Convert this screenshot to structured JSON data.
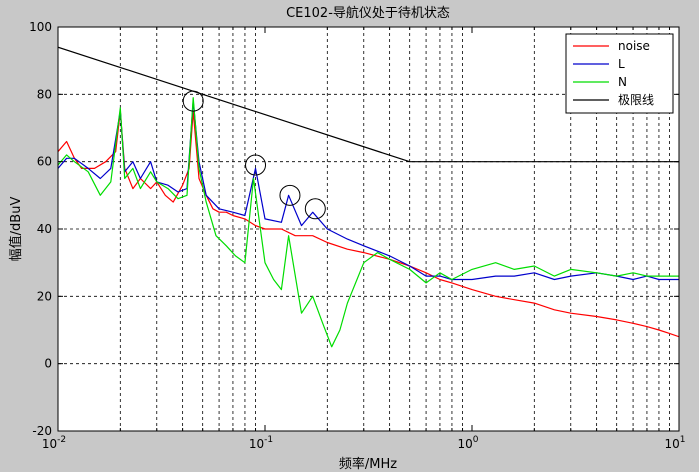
{
  "chart_data": {
    "type": "line",
    "title": "CE102-导航仪处于待机状态",
    "xlabel": "频率/MHz",
    "ylabel": "幅值/dBuV",
    "x_scale": "log",
    "xlim": [
      0.01,
      10
    ],
    "ylim": [
      -20,
      100
    ],
    "grid": true,
    "legend_position": "top-right",
    "x_tick_labels": [
      {
        "base": "10",
        "exp": "-2"
      },
      {
        "base": "10",
        "exp": "-1"
      },
      {
        "base": "10",
        "exp": "0"
      },
      {
        "base": "10",
        "exp": "1"
      }
    ],
    "y_ticks": [
      -20,
      0,
      20,
      40,
      60,
      80,
      100
    ],
    "series": [
      {
        "name": "noise",
        "color": "#ff0000",
        "x": [
          0.01,
          0.011,
          0.012,
          0.013,
          0.015,
          0.017,
          0.019,
          0.02,
          0.021,
          0.023,
          0.025,
          0.028,
          0.03,
          0.033,
          0.036,
          0.04,
          0.043,
          0.045,
          0.048,
          0.052,
          0.056,
          0.06,
          0.065,
          0.07,
          0.08,
          0.09,
          0.1,
          0.12,
          0.14,
          0.17,
          0.2,
          0.25,
          0.3,
          0.4,
          0.5,
          0.6,
          0.7,
          0.8,
          1.0,
          1.3,
          1.6,
          2.0,
          2.5,
          3.0,
          4.0,
          5.0,
          6.0,
          7.0,
          8.0,
          9.0,
          10.0
        ],
        "y": [
          63,
          66,
          61,
          58,
          58,
          60,
          63,
          75,
          58,
          52,
          55,
          52,
          54,
          50,
          48,
          53,
          58,
          75,
          55,
          50,
          46,
          45,
          45,
          44,
          43,
          41,
          40,
          40,
          38,
          38,
          36,
          34,
          33,
          31,
          29,
          27,
          25,
          24,
          22,
          20,
          19,
          18,
          16,
          15,
          14,
          13,
          12,
          11,
          10,
          9,
          8
        ]
      },
      {
        "name": "L",
        "color": "#0000cc",
        "x": [
          0.01,
          0.011,
          0.012,
          0.014,
          0.016,
          0.018,
          0.02,
          0.021,
          0.023,
          0.025,
          0.028,
          0.03,
          0.034,
          0.038,
          0.042,
          0.045,
          0.048,
          0.052,
          0.06,
          0.07,
          0.08,
          0.09,
          0.1,
          0.12,
          0.13,
          0.15,
          0.17,
          0.2,
          0.25,
          0.3,
          0.4,
          0.5,
          0.6,
          0.7,
          0.8,
          1.0,
          1.3,
          1.6,
          2.0,
          2.5,
          3.0,
          4.0,
          5.0,
          6.0,
          7.0,
          8.0,
          9.0,
          10.0
        ],
        "y": [
          58,
          61,
          61,
          58,
          55,
          58,
          75,
          57,
          60,
          55,
          60,
          54,
          53,
          51,
          52,
          78,
          60,
          50,
          46,
          45,
          44,
          58,
          43,
          42,
          50,
          41,
          45,
          40,
          37,
          35,
          32,
          29,
          26,
          26,
          25,
          25,
          26,
          26,
          27,
          25,
          26,
          27,
          26,
          25,
          26,
          25,
          25,
          25
        ]
      },
      {
        "name": "N",
        "color": "#00dd00",
        "x": [
          0.01,
          0.011,
          0.012,
          0.014,
          0.016,
          0.018,
          0.02,
          0.021,
          0.023,
          0.025,
          0.028,
          0.03,
          0.034,
          0.038,
          0.042,
          0.045,
          0.048,
          0.052,
          0.058,
          0.065,
          0.072,
          0.08,
          0.088,
          0.1,
          0.11,
          0.12,
          0.13,
          0.15,
          0.17,
          0.19,
          0.21,
          0.23,
          0.25,
          0.3,
          0.35,
          0.4,
          0.5,
          0.6,
          0.7,
          0.8,
          1.0,
          1.3,
          1.6,
          2.0,
          2.5,
          3.0,
          4.0,
          5.0,
          6.0,
          7.0,
          8.0,
          9.0,
          10.0
        ],
        "y": [
          59,
          62,
          60,
          57,
          50,
          54,
          76,
          55,
          58,
          52,
          57,
          54,
          52,
          49,
          50,
          79,
          58,
          48,
          38,
          35,
          32,
          30,
          55,
          30,
          25,
          22,
          38,
          15,
          20,
          12,
          5,
          10,
          18,
          30,
          33,
          31,
          28,
          24,
          27,
          25,
          28,
          30,
          28,
          29,
          26,
          28,
          27,
          26,
          27,
          26,
          26,
          26,
          26
        ]
      },
      {
        "name": "极限线",
        "color": "#000000",
        "x": [
          0.01,
          0.5,
          10
        ],
        "y": [
          94,
          60,
          60
        ]
      }
    ],
    "annotations": [
      {
        "shape": "circle",
        "x": 0.045,
        "y": 78
      },
      {
        "shape": "circle",
        "x": 0.09,
        "y": 59
      },
      {
        "shape": "circle",
        "x": 0.132,
        "y": 50
      },
      {
        "shape": "circle",
        "x": 0.175,
        "y": 46
      }
    ]
  }
}
